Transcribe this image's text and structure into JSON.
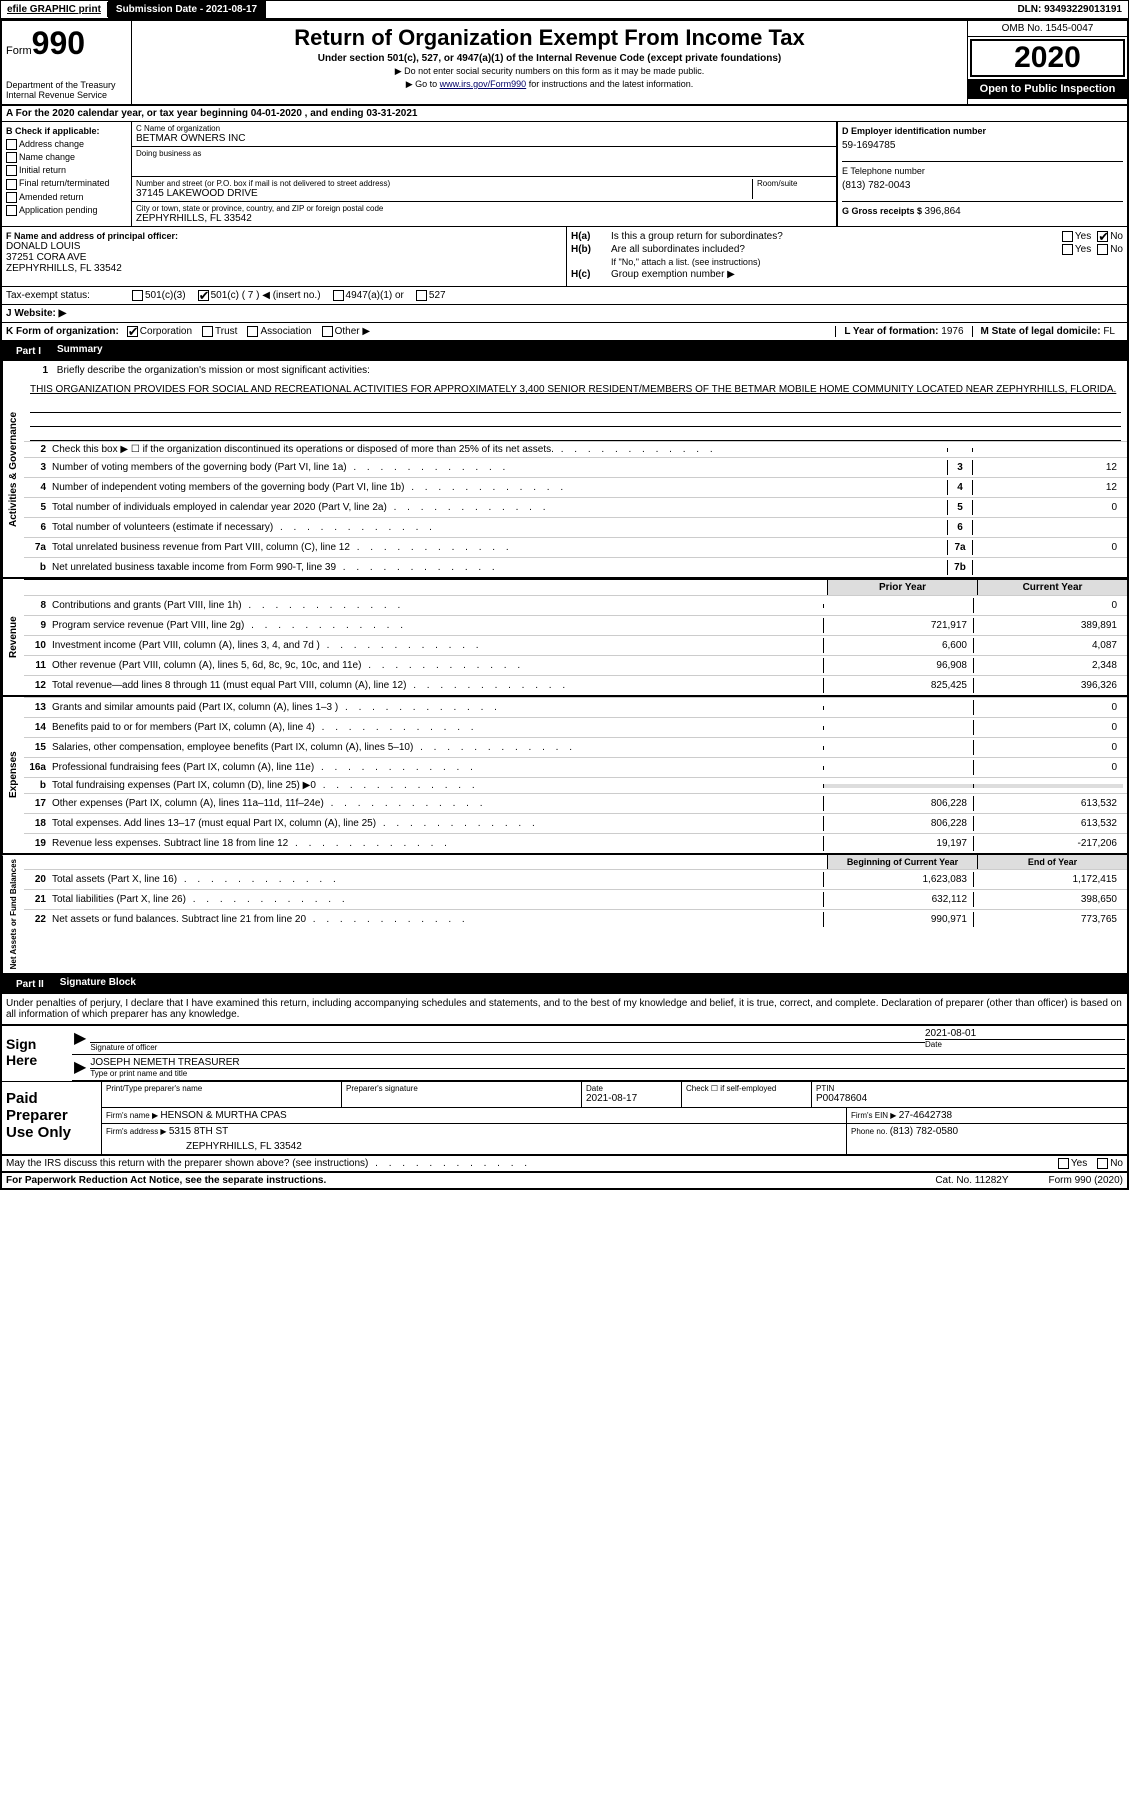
{
  "top_bar": {
    "efile": "efile GRAPHIC print",
    "submission_label": "Submission Date - ",
    "submission_date": "2021-08-17",
    "dln_label": "DLN: ",
    "dln": "93493229013191"
  },
  "header": {
    "form_label": "Form",
    "form_num": "990",
    "dept": "Department of the Treasury",
    "irs": "Internal Revenue Service",
    "title": "Return of Organization Exempt From Income Tax",
    "subtitle": "Under section 501(c), 527, or 4947(a)(1) of the Internal Revenue Code (except private foundations)",
    "instr1": "▶ Do not enter social security numbers on this form as it may be made public.",
    "instr2_pre": "▶ Go to ",
    "instr2_link": "www.irs.gov/Form990",
    "instr2_post": " for instructions and the latest information.",
    "omb": "OMB No. 1545-0047",
    "year": "2020",
    "public": "Open to Public Inspection"
  },
  "row_a": "A For the 2020 calendar year, or tax year beginning 04-01-2020    , and ending 03-31-2021",
  "section_b": {
    "label": "B Check if applicable:",
    "items": [
      "Address change",
      "Name change",
      "Initial return",
      "Final return/terminated",
      "Amended return",
      "Application pending"
    ]
  },
  "section_c": {
    "name_label": "C Name of organization",
    "name": "BETMAR OWNERS INC",
    "dba_label": "Doing business as",
    "addr_label": "Number and street (or P.O. box if mail is not delivered to street address)",
    "room_label": "Room/suite",
    "address": "37145 LAKEWOOD DRIVE",
    "city_label": "City or town, state or province, country, and ZIP or foreign postal code",
    "city": "ZEPHYRHILLS, FL  33542"
  },
  "section_d": {
    "ein_label": "D Employer identification number",
    "ein": "59-1694785",
    "phone_label": "E Telephone number",
    "phone": "(813) 782-0043",
    "gross_label": "G Gross receipts $ ",
    "gross": "396,864"
  },
  "section_f": {
    "label": "F  Name and address of principal officer:",
    "name": "DONALD LOUIS",
    "addr1": "37251 CORA AVE",
    "addr2": "ZEPHYRHILLS, FL  33542"
  },
  "section_h": {
    "ha_label": "H(a)",
    "ha_text": "Is this a group return for subordinates?",
    "hb_label": "H(b)",
    "hb_text": "Are all subordinates included?",
    "hb_note": "If \"No,\" attach a list. (see instructions)",
    "hc_label": "H(c)",
    "hc_text": "Group exemption number ▶",
    "yes": "Yes",
    "no": "No"
  },
  "tax_status": {
    "label": "Tax-exempt status:",
    "opt1": "501(c)(3)",
    "opt2": "501(c) ( 7 ) ◀ (insert no.)",
    "opt3": "4947(a)(1) or",
    "opt4": "527"
  },
  "website": {
    "label": "J   Website: ▶"
  },
  "row_k": {
    "label": "K Form of organization:",
    "opts": [
      "Corporation",
      "Trust",
      "Association",
      "Other ▶"
    ],
    "l_label": "L Year of formation: ",
    "l_val": "1976",
    "m_label": "M State of legal domicile: ",
    "m_val": "FL"
  },
  "part1": {
    "num": "Part I",
    "title": "Summary",
    "line1_label": "Briefly describe the organization's mission or most significant activities:",
    "mission": "THIS ORGANIZATION PROVIDES FOR SOCIAL AND RECREATIONAL ACTIVITIES FOR APPROXIMATELY 3,400 SENIOR RESIDENT/MEMBERS OF THE BETMAR MOBILE HOME COMMUNITY LOCATED NEAR ZEPHYRHILLS, FLORIDA.",
    "vert_labels": [
      "Activities & Governance",
      "Revenue",
      "Expenses",
      "Net Assets or Fund Balances"
    ],
    "lines_gov": [
      {
        "num": "2",
        "desc": "Check this box ▶ ☐  if the organization discontinued its operations or disposed of more than 25% of its net assets.",
        "box": "",
        "val": ""
      },
      {
        "num": "3",
        "desc": "Number of voting members of the governing body (Part VI, line 1a)",
        "box": "3",
        "val": "12"
      },
      {
        "num": "4",
        "desc": "Number of independent voting members of the governing body (Part VI, line 1b)",
        "box": "4",
        "val": "12"
      },
      {
        "num": "5",
        "desc": "Total number of individuals employed in calendar year 2020 (Part V, line 2a)",
        "box": "5",
        "val": "0"
      },
      {
        "num": "6",
        "desc": "Total number of volunteers (estimate if necessary)",
        "box": "6",
        "val": ""
      },
      {
        "num": "7a",
        "desc": "Total unrelated business revenue from Part VIII, column (C), line 12",
        "box": "7a",
        "val": "0"
      },
      {
        "num": "b",
        "desc": "Net unrelated business taxable income from Form 990-T, line 39",
        "box": "7b",
        "val": ""
      }
    ],
    "col_headers": {
      "prior": "Prior Year",
      "current": "Current Year"
    },
    "lines_rev": [
      {
        "num": "8",
        "desc": "Contributions and grants (Part VIII, line 1h)",
        "prior": "",
        "current": "0"
      },
      {
        "num": "9",
        "desc": "Program service revenue (Part VIII, line 2g)",
        "prior": "721,917",
        "current": "389,891"
      },
      {
        "num": "10",
        "desc": "Investment income (Part VIII, column (A), lines 3, 4, and 7d )",
        "prior": "6,600",
        "current": "4,087"
      },
      {
        "num": "11",
        "desc": "Other revenue (Part VIII, column (A), lines 5, 6d, 8c, 9c, 10c, and 11e)",
        "prior": "96,908",
        "current": "2,348"
      },
      {
        "num": "12",
        "desc": "Total revenue—add lines 8 through 11 (must equal Part VIII, column (A), line 12)",
        "prior": "825,425",
        "current": "396,326"
      }
    ],
    "lines_exp": [
      {
        "num": "13",
        "desc": "Grants and similar amounts paid (Part IX, column (A), lines 1–3 )",
        "prior": "",
        "current": "0"
      },
      {
        "num": "14",
        "desc": "Benefits paid to or for members (Part IX, column (A), line 4)",
        "prior": "",
        "current": "0"
      },
      {
        "num": "15",
        "desc": "Salaries, other compensation, employee benefits (Part IX, column (A), lines 5–10)",
        "prior": "",
        "current": "0"
      },
      {
        "num": "16a",
        "desc": "Professional fundraising fees (Part IX, column (A), line 11e)",
        "prior": "",
        "current": "0"
      },
      {
        "num": "b",
        "desc": "Total fundraising expenses (Part IX, column (D), line 25) ▶0",
        "prior": "shaded",
        "current": "shaded"
      },
      {
        "num": "17",
        "desc": "Other expenses (Part IX, column (A), lines 11a–11d, 11f–24e)",
        "prior": "806,228",
        "current": "613,532"
      },
      {
        "num": "18",
        "desc": "Total expenses. Add lines 13–17 (must equal Part IX, column (A), line 25)",
        "prior": "806,228",
        "current": "613,532"
      },
      {
        "num": "19",
        "desc": "Revenue less expenses. Subtract line 18 from line 12",
        "prior": "19,197",
        "current": "-217,206"
      }
    ],
    "col_headers2": {
      "begin": "Beginning of Current Year",
      "end": "End of Year"
    },
    "lines_net": [
      {
        "num": "20",
        "desc": "Total assets (Part X, line 16)",
        "prior": "1,623,083",
        "current": "1,172,415"
      },
      {
        "num": "21",
        "desc": "Total liabilities (Part X, line 26)",
        "prior": "632,112",
        "current": "398,650"
      },
      {
        "num": "22",
        "desc": "Net assets or fund balances. Subtract line 21 from line 20",
        "prior": "990,971",
        "current": "773,765"
      }
    ]
  },
  "part2": {
    "num": "Part II",
    "title": "Signature Block",
    "declaration": "Under penalties of perjury, I declare that I have examined this return, including accompanying schedules and statements, and to the best of my knowledge and belief, it is true, correct, and complete. Declaration of preparer (other than officer) is based on all information of which preparer has any knowledge."
  },
  "sign": {
    "label": "Sign Here",
    "sig_label": "Signature of officer",
    "date_label": "Date",
    "date": "2021-08-01",
    "name": "JOSEPH NEMETH  TREASURER",
    "name_label": "Type or print name and title"
  },
  "paid": {
    "label": "Paid Preparer Use Only",
    "h1": "Print/Type preparer's name",
    "h2": "Preparer's signature",
    "h3": "Date",
    "h3v": "2021-08-17",
    "h4": "Check ☐ if self-employed",
    "h5": "PTIN",
    "h5v": "P00478604",
    "firm_label": "Firm's name    ▶ ",
    "firm": "HENSON & MURTHA CPAS",
    "ein_label": "Firm's EIN ▶ ",
    "ein": "27-4642738",
    "addr_label": "Firm's address ▶ ",
    "addr1": "5315 8TH ST",
    "addr2": "ZEPHYRHILLS, FL  33542",
    "phone_label": "Phone no. ",
    "phone": "(813) 782-0580"
  },
  "footer": {
    "discuss": "May the IRS discuss this return with the preparer shown above? (see instructions)",
    "paperwork": "For Paperwork Reduction Act Notice, see the separate instructions.",
    "cat": "Cat. No. 11282Y",
    "form": "Form 990 (2020)",
    "yes": "Yes",
    "no": "No"
  }
}
